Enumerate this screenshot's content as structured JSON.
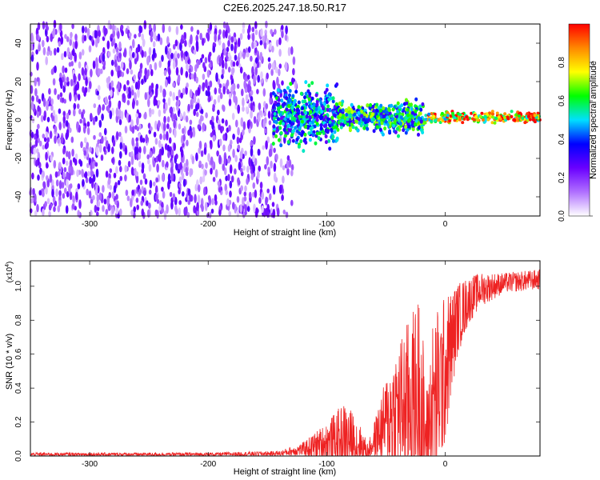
{
  "title": "C2E6.2025.247.18.50.R17",
  "chart_data": [
    {
      "type": "heatmap",
      "xlabel": "Height of straight line (km)",
      "ylabel": "Frequency (Hz)",
      "xlim": [
        -350,
        80
      ],
      "ylim": [
        -50,
        50
      ],
      "x_ticks": [
        -300,
        -200,
        -100,
        0
      ],
      "y_ticks": [
        -40,
        -20,
        0,
        20,
        40
      ],
      "grid": false,
      "description_of_field": [
        {
          "x_range": [
            -350,
            -120
          ],
          "freq_spread_hz": 50,
          "amplitude": 0.15
        },
        {
          "x_range": [
            -145,
            -90
          ],
          "center_freq_hz": 2,
          "freq_spread_hz": 10,
          "amplitude": 0.45
        },
        {
          "x_range": [
            -90,
            -18
          ],
          "center_freq_hz": 1.5,
          "freq_spread_hz": 5,
          "amplitude": 0.5
        },
        {
          "x_range": [
            -18,
            80
          ],
          "center_freq_hz": 1.5,
          "freq_spread_hz": 2,
          "amplitude": 0.8
        }
      ],
      "colorbar": {
        "label": "Normalized spectral amplitude",
        "range": [
          0,
          1
        ],
        "ticks": [
          "0.0",
          "0.2",
          "0.4",
          "0.6",
          "0.8"
        ],
        "colors": [
          "#ffffff",
          "#b070ff",
          "#6a00ff",
          "#0000ff",
          "#00e0ff",
          "#00ff00",
          "#ffff00",
          "#ff8800",
          "#ff0000"
        ]
      }
    },
    {
      "type": "line",
      "xlabel": "Height of straight line (km)",
      "ylabel": "SNR (10 * v/v)",
      "y_scale_label": "(x10",
      "y_scale_exp": "4",
      "y_scale_close": ")",
      "xlim": [
        -350,
        80
      ],
      "ylim": [
        0,
        1.15
      ],
      "x_ticks": [
        -300,
        -200,
        -100,
        0
      ],
      "y_ticks": [
        "0.0",
        "0.2",
        "0.4",
        "0.6",
        "0.8",
        "1.0"
      ],
      "color": "#ee2222",
      "envelope": [
        {
          "x": -350,
          "base": 0.01,
          "spread": 0.01
        },
        {
          "x": -200,
          "base": 0.01,
          "spread": 0.01
        },
        {
          "x": -140,
          "base": 0.015,
          "spread": 0.015
        },
        {
          "x": -120,
          "base": 0.04,
          "spread": 0.04
        },
        {
          "x": -100,
          "base": 0.08,
          "spread": 0.12
        },
        {
          "x": -85,
          "base": 0.1,
          "spread": 0.22
        },
        {
          "x": -75,
          "base": 0.08,
          "spread": 0.16
        },
        {
          "x": -65,
          "base": 0.03,
          "spread": 0.04
        },
        {
          "x": -55,
          "base": 0.15,
          "spread": 0.18
        },
        {
          "x": -45,
          "base": 0.25,
          "spread": 0.35
        },
        {
          "x": -35,
          "base": 0.3,
          "spread": 0.45
        },
        {
          "x": -25,
          "base": 0.35,
          "spread": 0.55
        },
        {
          "x": -20,
          "base": 0.3,
          "spread": 0.75
        },
        {
          "x": -17,
          "base": 0.1,
          "spread": 0.2
        },
        {
          "x": -10,
          "base": 0.3,
          "spread": 0.55
        },
        {
          "x": 0,
          "base": 0.5,
          "spread": 0.45
        },
        {
          "x": 10,
          "base": 0.8,
          "spread": 0.22
        },
        {
          "x": 20,
          "base": 0.92,
          "spread": 0.14
        },
        {
          "x": 30,
          "base": 0.98,
          "spread": 0.1
        },
        {
          "x": 50,
          "base": 1.02,
          "spread": 0.06
        },
        {
          "x": 80,
          "base": 1.04,
          "spread": 0.06
        }
      ]
    }
  ]
}
